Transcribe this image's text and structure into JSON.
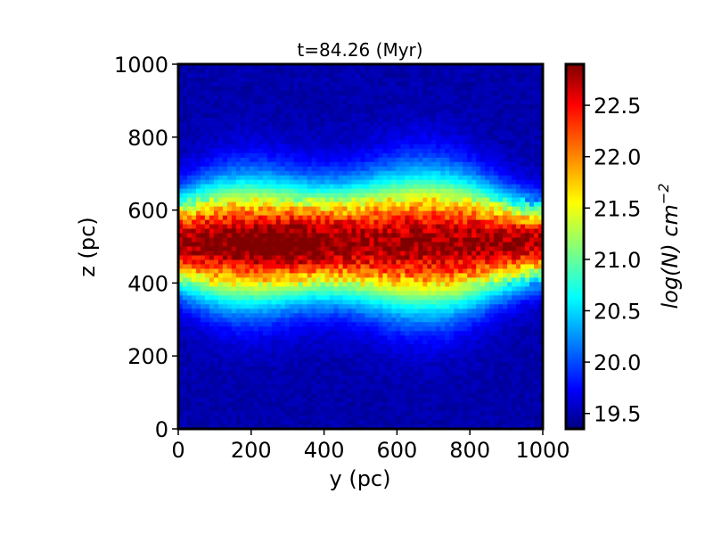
{
  "chart_data": {
    "type": "heatmap",
    "title": "t=84.26 (Myr)",
    "xlabel": "y (pc)",
    "ylabel": "z (pc)",
    "xlim": [
      0,
      1000
    ],
    "ylim": [
      0,
      1000
    ],
    "x_ticks": [
      "0",
      "200",
      "400",
      "600",
      "800",
      "1000"
    ],
    "y_ticks": [
      "0",
      "200",
      "400",
      "600",
      "800",
      "1000"
    ],
    "colorbar": {
      "label": "log(N) cm",
      "label_exponent": "−2",
      "range": [
        19.35,
        22.9
      ],
      "ticks": [
        "19.5",
        "20.0",
        "20.5",
        "21.0",
        "21.5",
        "22.0",
        "22.5"
      ],
      "colormap": "jet"
    },
    "field_description_values": {
      "midplane_z": 510,
      "peak_logN": 22.7,
      "background_logN": 19.4
    },
    "grid": false
  },
  "colors": {
    "frame": "#000000",
    "jet": [
      "#00007f",
      "#0000ff",
      "#007fff",
      "#00ffff",
      "#7fff7f",
      "#ffff00",
      "#ff7f00",
      "#ff0000",
      "#7f0000"
    ]
  }
}
